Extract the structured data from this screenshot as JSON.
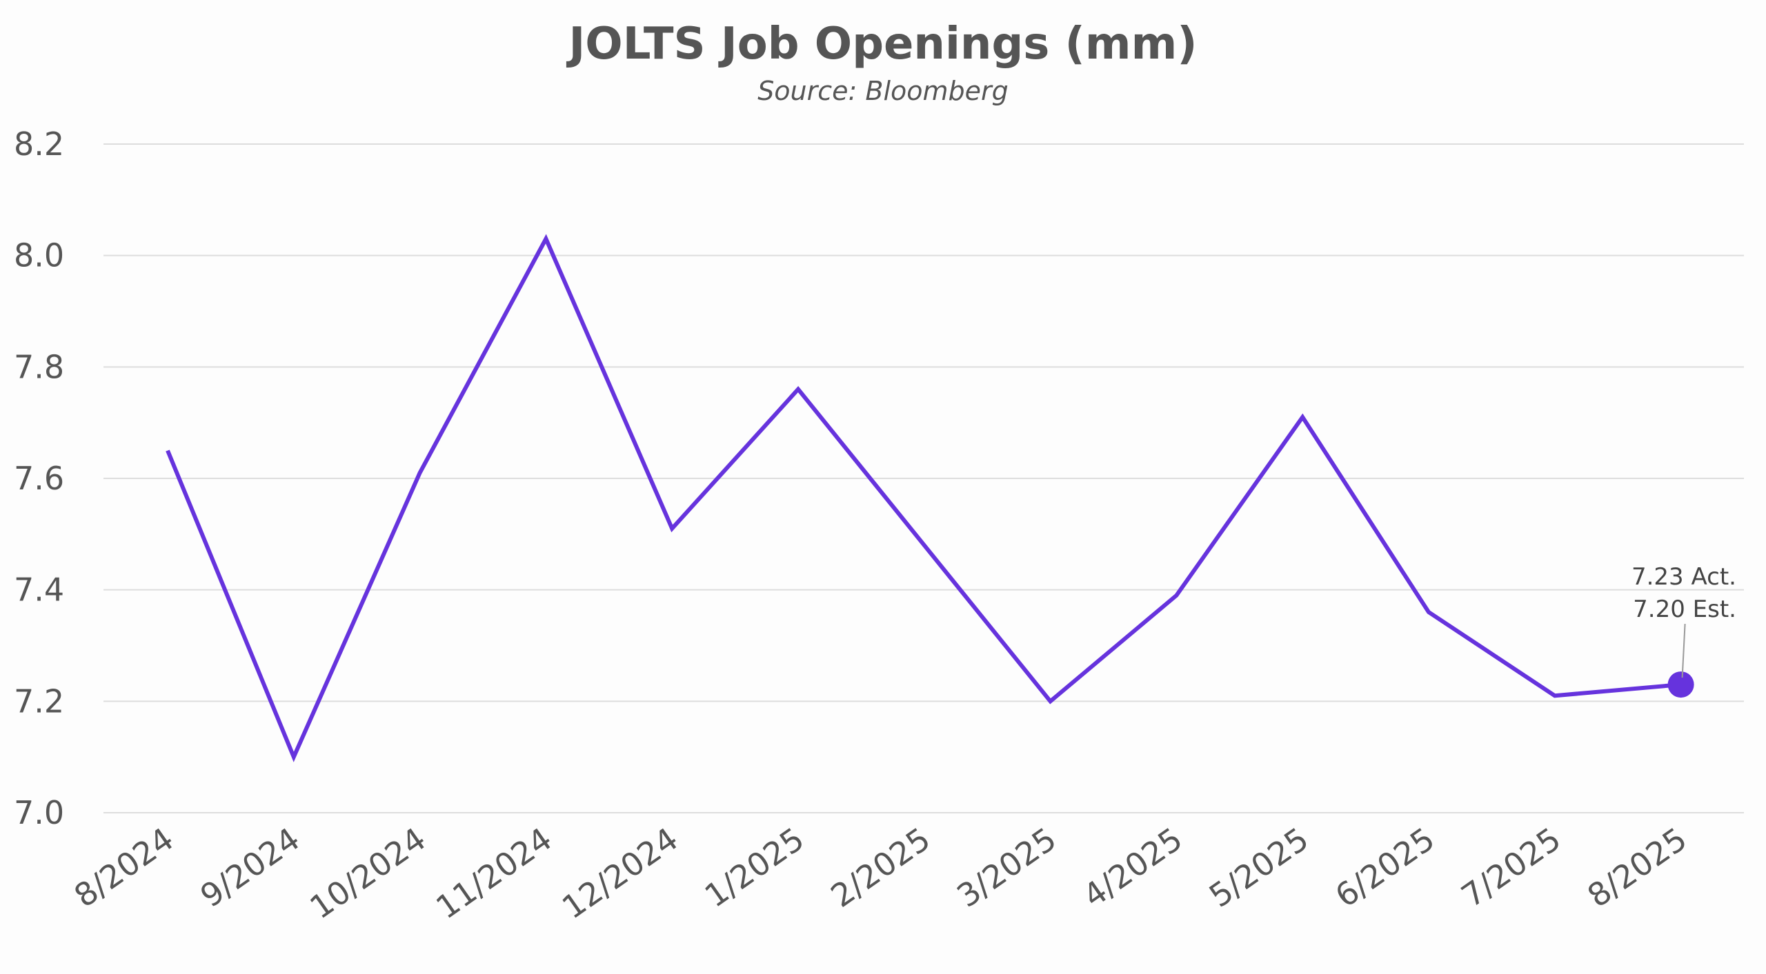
{
  "chart_data": {
    "type": "line",
    "title": "JOLTS Job Openings (mm)",
    "subtitle": "Source: Bloomberg",
    "xlabel": "",
    "ylabel": "",
    "categories": [
      "8/2024",
      "9/2024",
      "10/2024",
      "11/2024",
      "12/2024",
      "1/2025",
      "2/2025",
      "3/2025",
      "4/2025",
      "5/2025",
      "6/2025",
      "7/2025",
      "8/2025"
    ],
    "values": [
      7.65,
      7.1,
      7.61,
      8.03,
      7.51,
      7.76,
      7.48,
      7.2,
      7.39,
      7.71,
      7.36,
      7.21,
      7.23
    ],
    "ylim": [
      7.0,
      8.2
    ],
    "yticks": [
      "7.0",
      "7.2",
      "7.4",
      "7.6",
      "7.8",
      "8.0",
      "8.2"
    ],
    "grid": "horizontal",
    "legend": "none",
    "line_color": "#6633dd",
    "annotation": {
      "actual": "7.23 Act.",
      "estimate": "7.20 Est."
    }
  }
}
